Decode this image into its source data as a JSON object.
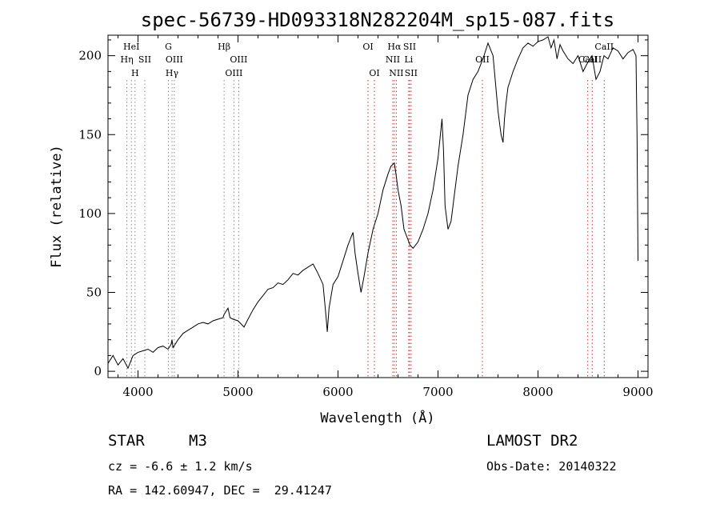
{
  "chart_data": {
    "type": "line",
    "title": "spec-56739-HD093318N282204M_sp15-087.fits",
    "xlabel": "Wavelength (Å)",
    "ylabel": "Flux (relative)",
    "xlim": [
      3700,
      9100
    ],
    "ylim": [
      -4,
      213
    ],
    "xticks": [
      4000,
      5000,
      6000,
      7000,
      8000,
      9000
    ],
    "yticks": [
      0,
      50,
      100,
      150,
      200
    ],
    "series": [
      {
        "x": [
          3700,
          3750,
          3800,
          3850,
          3900,
          3950,
          4000,
          4050,
          4100,
          4150,
          4200,
          4250,
          4300,
          4330,
          4340,
          4350,
          4400,
          4450,
          4500,
          4550,
          4600,
          4650,
          4700,
          4750,
          4800,
          4850,
          4861,
          4900,
          4920,
          4950,
          5000,
          5030,
          5060,
          5100,
          5150,
          5200,
          5250,
          5300,
          5350,
          5400,
          5450,
          5500,
          5550,
          5600,
          5650,
          5700,
          5750,
          5800,
          5850,
          5880,
          5893,
          5910,
          5950,
          6000,
          6050,
          6100,
          6130,
          6150,
          6170,
          6200,
          6230,
          6260,
          6300,
          6350,
          6400,
          6450,
          6500,
          6530,
          6563,
          6580,
          6600,
          6630,
          6660,
          6690,
          6720,
          6750,
          6800,
          6850,
          6900,
          6950,
          7000,
          7040,
          7055,
          7070,
          7100,
          7130,
          7160,
          7200,
          7250,
          7300,
          7350,
          7400,
          7430,
          7460,
          7500,
          7550,
          7600,
          7630,
          7650,
          7665,
          7680,
          7700,
          7750,
          7800,
          7850,
          7900,
          7950,
          8000,
          8050,
          8100,
          8130,
          8160,
          8190,
          8220,
          8250,
          8300,
          8350,
          8400,
          8450,
          8500,
          8540,
          8580,
          8620,
          8660,
          8700,
          8750,
          8800,
          8850,
          8900,
          8950,
          8980,
          8990,
          9000
        ],
        "y": [
          5,
          10,
          4,
          8,
          2,
          10,
          12,
          13,
          14,
          12,
          15,
          16,
          14,
          17,
          20,
          15,
          20,
          24,
          26,
          28,
          30,
          31,
          30,
          32,
          33,
          34,
          36,
          40,
          34,
          33,
          32,
          30,
          28,
          33,
          39,
          44,
          48,
          52,
          53,
          56,
          55,
          58,
          62,
          61,
          64,
          66,
          68,
          62,
          55,
          35,
          25,
          40,
          55,
          60,
          70,
          80,
          85,
          88,
          75,
          62,
          50,
          60,
          75,
          90,
          100,
          115,
          125,
          130,
          132,
          125,
          115,
          105,
          90,
          85,
          80,
          78,
          82,
          90,
          100,
          115,
          135,
          160,
          140,
          105,
          90,
          95,
          110,
          130,
          150,
          175,
          185,
          190,
          195,
          200,
          208,
          200,
          165,
          150,
          145,
          160,
          170,
          180,
          190,
          198,
          205,
          208,
          206,
          209,
          210,
          212,
          205,
          210,
          198,
          207,
          203,
          198,
          195,
          200,
          190,
          196,
          200,
          185,
          190,
          200,
          198,
          205,
          203,
          198,
          202,
          204,
          200,
          150,
          70
        ]
      }
    ],
    "line_markers": [
      {
        "wavelength": 3889,
        "label": "Hη",
        "row": 2,
        "color": "#888888"
      },
      {
        "wavelength": 3934,
        "label": "HeI",
        "row": 1,
        "color": "#888888"
      },
      {
        "wavelength": 3970,
        "label": "H",
        "row": 3,
        "color": "#888888"
      },
      {
        "wavelength": 4068,
        "label": "SII",
        "row": 2,
        "color": "#888888"
      },
      {
        "wavelength": 4304,
        "label": "G",
        "row": 1,
        "color": "#888888"
      },
      {
        "wavelength": 4340,
        "label": "Hγ",
        "row": 3,
        "color": "#888888"
      },
      {
        "wavelength": 4363,
        "label": "OIII",
        "row": 2,
        "color": "#888888"
      },
      {
        "wavelength": 4861,
        "label": "Hβ",
        "row": 1,
        "color": "#888888"
      },
      {
        "wavelength": 4959,
        "label": "OIII",
        "row": 3,
        "color": "#888888"
      },
      {
        "wavelength": 5007,
        "label": "OIII",
        "row": 2,
        "color": "#888888"
      },
      {
        "wavelength": 6300,
        "label": "OI",
        "row": 1,
        "color": "#cc3333"
      },
      {
        "wavelength": 6364,
        "label": "OI",
        "row": 3,
        "color": "#cc3333"
      },
      {
        "wavelength": 6548,
        "label": "NII",
        "row": 2,
        "color": "#cc3333"
      },
      {
        "wavelength": 6563,
        "label": "Hα",
        "row": 1,
        "color": "#cc3333"
      },
      {
        "wavelength": 6583,
        "label": "NII",
        "row": 3,
        "color": "#cc3333"
      },
      {
        "wavelength": 6707,
        "label": "Li",
        "row": 2,
        "color": "#cc3333"
      },
      {
        "wavelength": 6716,
        "label": "SII",
        "row": 1,
        "color": "#cc3333"
      },
      {
        "wavelength": 6731,
        "label": "SII",
        "row": 3,
        "color": "#cc3333"
      },
      {
        "wavelength": 7444,
        "label": "OII",
        "row": 2,
        "color": "#cc3333"
      },
      {
        "wavelength": 8498,
        "label": "CaII",
        "row": 2,
        "color": "#cc3333"
      },
      {
        "wavelength": 8542,
        "label": "CaII",
        "row": 2,
        "color": "#cc3333"
      },
      {
        "wavelength": 8662,
        "label": "CaII",
        "row": 1,
        "color": "#cc3333"
      }
    ],
    "grid": false,
    "legend": "none"
  },
  "info": {
    "class": "STAR",
    "subclass": "M3",
    "survey": "LAMOST DR2",
    "cz": "cz = -6.6 ± 1.2 km/s",
    "obs_date": "Obs-Date: 20140322",
    "coords": "RA = 142.60947, DEC =  29.41247"
  },
  "colors": {
    "spectrum": "#000000",
    "marker_blue_side": "#888888",
    "marker_red_side": "#cc3333"
  }
}
